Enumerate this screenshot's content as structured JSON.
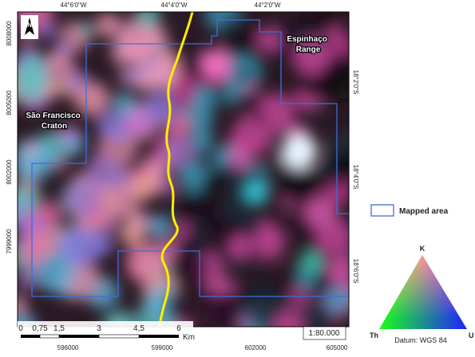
{
  "grid_labels": {
    "top": [
      "44°6'0\"W",
      "44°4'0\"W",
      "44°2'0\"W"
    ],
    "left": [
      "8008000",
      "8005000",
      "8002000",
      "7999000"
    ],
    "bottom": [
      "596000",
      "599000",
      "602000",
      "605000"
    ],
    "right": [
      "18°2'0\"S",
      "18°4'0\"S",
      "18°6'0\"S"
    ]
  },
  "north": "N",
  "map_labels": {
    "espinhaco": [
      "Espinhaço",
      "Range"
    ],
    "sao_francisco": [
      "São Francisco",
      "Craton"
    ]
  },
  "scale_bar": {
    "ticks": [
      "0",
      "0,75",
      "1,5",
      "3",
      "4,5",
      "6"
    ],
    "unit": "Km",
    "ratio": "1:80.000"
  },
  "legend": {
    "mapped_area": "Mapped area"
  },
  "ternary": {
    "top": "K",
    "left": "Th",
    "right": "U",
    "datum": "Datum: WGS 84"
  }
}
